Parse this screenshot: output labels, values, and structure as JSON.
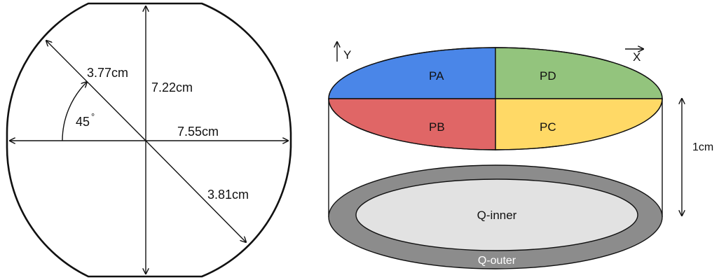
{
  "left_diagram": {
    "diagonal_upper_label": "3.77cm",
    "vertical_label": "7.22cm",
    "horizontal_label": "7.55cm",
    "diagonal_lower_label": "3.81cm",
    "angle_label": "45",
    "angle_unit": "°"
  },
  "right_diagram": {
    "y_axis_label": "Y",
    "x_axis_label": "X",
    "height_label": "1cm",
    "segments": {
      "pa": "PA",
      "pd": "PD",
      "pb": "PB",
      "pc": "PC"
    },
    "q_inner_label": "Q-inner",
    "q_outer_label": "Q-outer"
  },
  "colors": {
    "pa": "#4a86e8",
    "pd": "#93c47d",
    "pb": "#e06666",
    "pc": "#ffd966",
    "q_outer": "#8c8c8c",
    "q_inner": "#e2e2e2"
  }
}
